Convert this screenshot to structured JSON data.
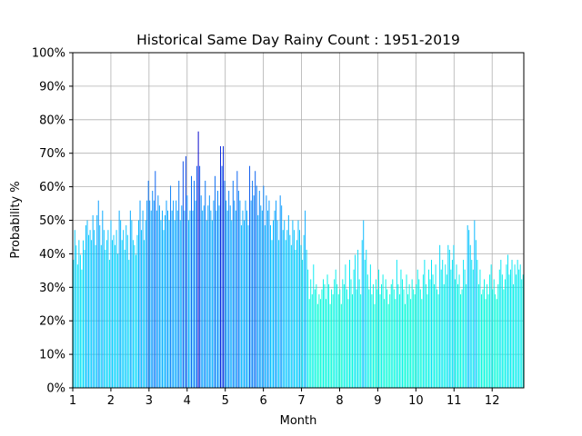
{
  "chart_data": {
    "type": "bar",
    "title": "Historical Same Day Rainy Count : 1951-2019",
    "xlabel": "Month",
    "ylabel": "Probability %",
    "xlim": [
      1,
      12.83
    ],
    "ylim": [
      0,
      100
    ],
    "grid": true,
    "x_ticks": [
      {
        "value": 1,
        "label": "1"
      },
      {
        "value": 2,
        "label": "2"
      },
      {
        "value": 3,
        "label": "3"
      },
      {
        "value": 4,
        "label": "4"
      },
      {
        "value": 5,
        "label": "5"
      },
      {
        "value": 6,
        "label": "6"
      },
      {
        "value": 7,
        "label": "7"
      },
      {
        "value": 8,
        "label": "8"
      },
      {
        "value": 9,
        "label": "9"
      },
      {
        "value": 10,
        "label": "10"
      },
      {
        "value": 11,
        "label": "11"
      },
      {
        "value": 12,
        "label": "12"
      }
    ],
    "y_ticks": [
      {
        "value": 0,
        "label": "0%"
      },
      {
        "value": 10,
        "label": "10%"
      },
      {
        "value": 20,
        "label": "20%"
      },
      {
        "value": 30,
        "label": "30%"
      },
      {
        "value": 40,
        "label": "40%"
      },
      {
        "value": 50,
        "label": "50%"
      },
      {
        "value": 60,
        "label": "60%"
      },
      {
        "value": 70,
        "label": "70%"
      },
      {
        "value": 80,
        "label": "80%"
      },
      {
        "value": 90,
        "label": "90%"
      },
      {
        "value": 100,
        "label": "100%"
      }
    ],
    "colormap": [
      "#00ffcc",
      "#00eeee",
      "#00ccff",
      "#0099ff",
      "#0055ee",
      "#0000cc"
    ],
    "color_value_range": [
      25,
      76
    ],
    "values": [
      38.2,
      47.1,
      42.5,
      36.8,
      44.1,
      39.7,
      35.3,
      44.0,
      41.2,
      48.5,
      50.0,
      45.6,
      47.1,
      44.1,
      51.5,
      47.1,
      42.6,
      51.5,
      55.9,
      48.5,
      42.6,
      52.9,
      47.1,
      41.2,
      44.1,
      47.1,
      38.2,
      50.0,
      44.1,
      45.6,
      42.6,
      47.1,
      40.0,
      52.9,
      50.0,
      44.1,
      47.1,
      41.2,
      48.5,
      45.6,
      38.2,
      52.9,
      50.0,
      44.1,
      42.6,
      39.7,
      45.6,
      50.0,
      55.9,
      47.1,
      52.9,
      44.1,
      50.0,
      55.9,
      61.8,
      55.9,
      52.9,
      58.8,
      55.9,
      64.7,
      52.9,
      57.4,
      54.4,
      50.0,
      52.9,
      47.1,
      51.5,
      55.9,
      52.9,
      50.0,
      60.3,
      52.9,
      55.9,
      50.0,
      55.9,
      52.9,
      61.8,
      50.0,
      54.4,
      67.6,
      52.9,
      69.1,
      57.4,
      50.0,
      52.9,
      63.2,
      52.9,
      61.8,
      55.9,
      66.2,
      76.5,
      66.2,
      57.4,
      52.9,
      54.4,
      61.8,
      50.0,
      54.4,
      57.4,
      52.9,
      50.0,
      55.9,
      63.2,
      52.9,
      58.8,
      54.4,
      72.1,
      66.2,
      72.1,
      61.8,
      55.9,
      52.9,
      58.8,
      54.4,
      50.0,
      61.8,
      55.9,
      52.9,
      64.7,
      58.8,
      55.9,
      48.5,
      52.9,
      50.0,
      55.9,
      52.9,
      48.5,
      66.2,
      55.9,
      61.8,
      57.4,
      64.7,
      60.3,
      51.5,
      58.8,
      54.4,
      52.9,
      60.3,
      48.5,
      57.4,
      52.9,
      55.9,
      48.5,
      44.1,
      50.0,
      52.9,
      55.9,
      50.0,
      44.1,
      57.4,
      54.4,
      47.1,
      50.0,
      44.1,
      47.1,
      51.5,
      45.6,
      42.6,
      50.0,
      47.1,
      41.2,
      44.1,
      50.0,
      47.1,
      42.6,
      38.2,
      45.6,
      52.9,
      41.2,
      35.3,
      26.5,
      32.4,
      27.9,
      36.8,
      29.4,
      30.9,
      25.0,
      27.9,
      26.5,
      29.4,
      32.4,
      30.9,
      26.5,
      33.8,
      30.9,
      25.0,
      29.4,
      27.9,
      32.4,
      35.3,
      30.9,
      27.9,
      29.4,
      25.0,
      32.4,
      30.9,
      36.8,
      29.4,
      26.5,
      38.2,
      32.4,
      27.9,
      35.3,
      39.7,
      29.4,
      41.2,
      32.4,
      27.9,
      44.1,
      50.0,
      38.2,
      41.2,
      33.8,
      29.4,
      36.8,
      27.9,
      30.9,
      25.0,
      32.4,
      29.4,
      35.3,
      27.9,
      30.9,
      33.8,
      26.5,
      32.4,
      29.4,
      25.0,
      27.9,
      30.9,
      32.4,
      29.4,
      26.5,
      38.2,
      30.9,
      27.9,
      35.3,
      32.4,
      29.4,
      25.0,
      33.8,
      27.9,
      30.9,
      26.5,
      32.4,
      29.4,
      27.9,
      30.9,
      35.3,
      32.4,
      29.4,
      26.5,
      33.8,
      38.2,
      30.9,
      27.9,
      35.3,
      32.4,
      38.2,
      33.8,
      30.9,
      36.8,
      29.4,
      27.9,
      42.6,
      35.3,
      38.2,
      30.9,
      36.8,
      33.8,
      42.6,
      41.2,
      35.3,
      38.2,
      42.6,
      32.4,
      36.8,
      30.9,
      33.8,
      27.9,
      29.4,
      38.2,
      35.3,
      30.9,
      48.5,
      47.1,
      42.6,
      38.2,
      35.3,
      50.0,
      44.1,
      38.2,
      30.9,
      35.3,
      27.9,
      29.4,
      32.4,
      26.5,
      30.9,
      27.9,
      33.8,
      36.8,
      29.4,
      32.4,
      27.9,
      26.5,
      30.9,
      35.3,
      38.2,
      33.8,
      29.4,
      32.4,
      36.8,
      39.7,
      33.8,
      35.3,
      38.2,
      30.9,
      36.8,
      33.8,
      38.2,
      35.3,
      36.8,
      32.4,
      33.8
    ]
  }
}
